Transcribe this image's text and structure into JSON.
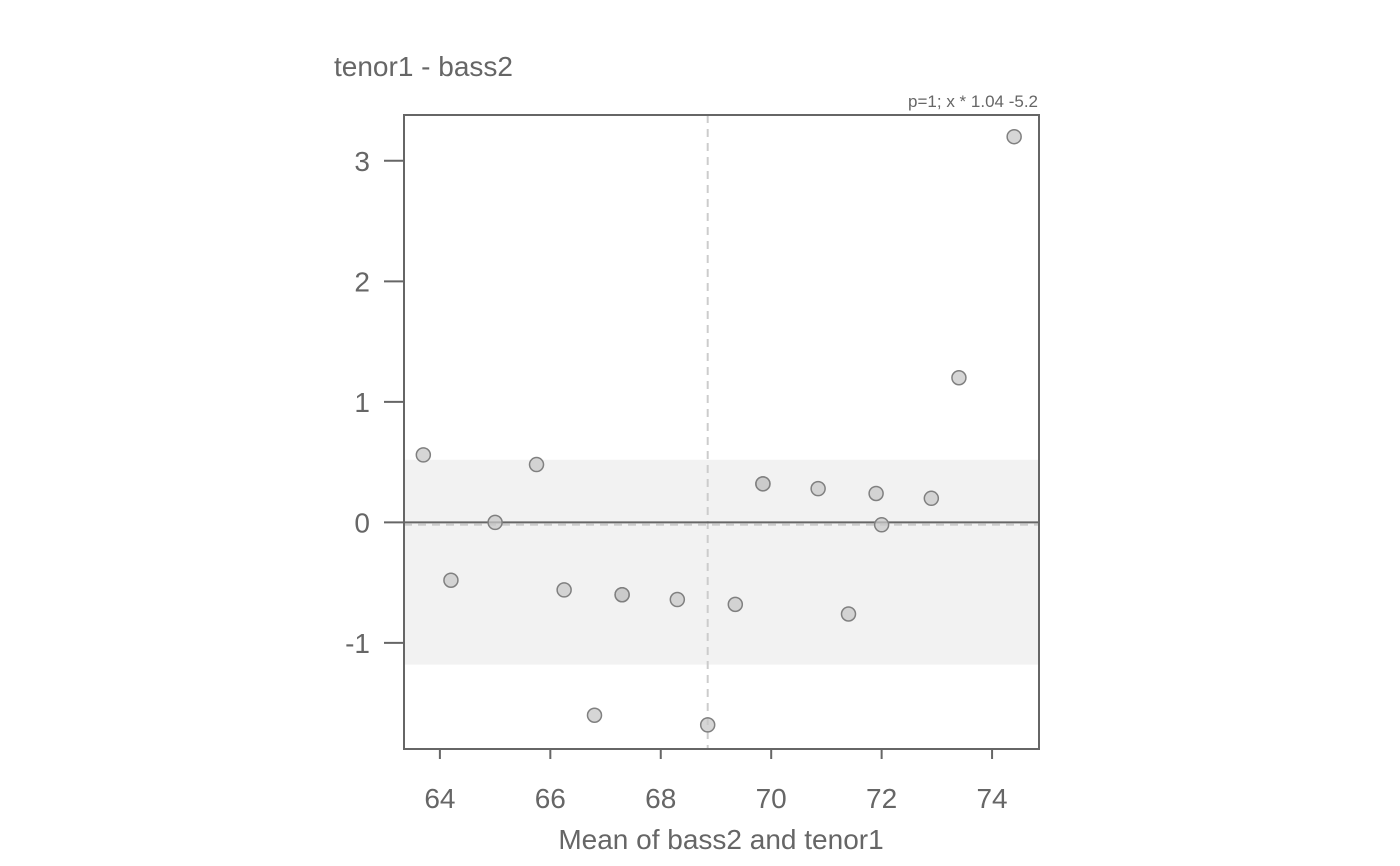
{
  "chart_data": {
    "type": "scatter",
    "title": "tenor1 - bass2",
    "annotation": "p=1; x * 1.04 -5.2",
    "xlabel": "Mean of bass2 and tenor1",
    "ylabel": "",
    "xlim": [
      63.35,
      74.85
    ],
    "ylim": [
      -1.88,
      3.38
    ],
    "xticks": [
      64,
      66,
      68,
      70,
      72,
      74
    ],
    "yticks": [
      3,
      2,
      1,
      0,
      -1
    ],
    "grid": false,
    "reference_lines": {
      "zero": 0,
      "mean_difference": -0.02,
      "mean_x": 68.85
    },
    "agreement_band": [
      -1.18,
      0.52
    ],
    "points": [
      {
        "x": 63.7,
        "y": 0.56
      },
      {
        "x": 64.2,
        "y": -0.48
      },
      {
        "x": 65.0,
        "y": 0.0
      },
      {
        "x": 65.75,
        "y": 0.48
      },
      {
        "x": 66.25,
        "y": -0.56
      },
      {
        "x": 66.8,
        "y": -1.6
      },
      {
        "x": 67.3,
        "y": -0.6
      },
      {
        "x": 67.3,
        "y": -0.6
      },
      {
        "x": 68.3,
        "y": -0.64
      },
      {
        "x": 68.85,
        "y": -1.68
      },
      {
        "x": 69.35,
        "y": -0.68
      },
      {
        "x": 69.85,
        "y": 0.32
      },
      {
        "x": 69.85,
        "y": 0.32
      },
      {
        "x": 70.85,
        "y": 0.28
      },
      {
        "x": 71.4,
        "y": -0.76
      },
      {
        "x": 71.9,
        "y": 0.24
      },
      {
        "x": 72.0,
        "y": -0.02
      },
      {
        "x": 72.9,
        "y": 0.2
      },
      {
        "x": 73.4,
        "y": 1.2
      },
      {
        "x": 74.4,
        "y": 3.2
      }
    ],
    "colors": {
      "point_fill": "#c8c8c8",
      "point_stroke": "#808080",
      "band": "#f2f2f2",
      "axis": "#666666",
      "zero_line": "#666666",
      "dashed_line": "#cccccc"
    }
  }
}
